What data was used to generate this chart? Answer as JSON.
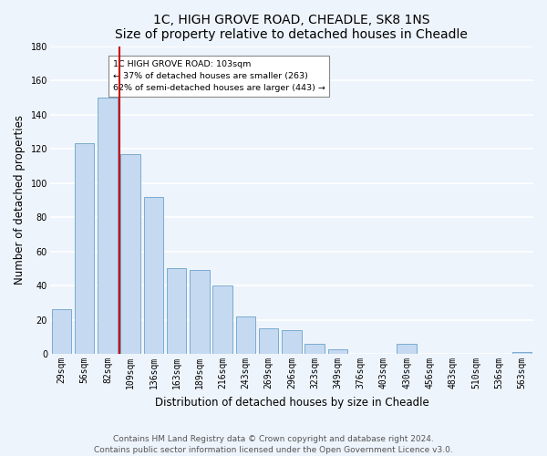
{
  "title": "1C, HIGH GROVE ROAD, CHEADLE, SK8 1NS",
  "subtitle": "Size of property relative to detached houses in Cheadle",
  "xlabel": "Distribution of detached houses by size in Cheadle",
  "ylabel": "Number of detached properties",
  "bar_labels": [
    "29sqm",
    "56sqm",
    "82sqm",
    "109sqm",
    "136sqm",
    "163sqm",
    "189sqm",
    "216sqm",
    "243sqm",
    "269sqm",
    "296sqm",
    "323sqm",
    "349sqm",
    "376sqm",
    "403sqm",
    "430sqm",
    "456sqm",
    "483sqm",
    "510sqm",
    "536sqm",
    "563sqm"
  ],
  "bar_values": [
    26,
    123,
    150,
    117,
    92,
    50,
    49,
    40,
    22,
    15,
    14,
    6,
    3,
    0,
    0,
    6,
    0,
    0,
    0,
    0,
    1
  ],
  "bar_color": "#c5d9f1",
  "bar_edge_color": "#7aaccf",
  "ylim": [
    0,
    180
  ],
  "yticks": [
    0,
    20,
    40,
    60,
    80,
    100,
    120,
    140,
    160,
    180
  ],
  "vline_position": 3.5,
  "property_line_label": "1C HIGH GROVE ROAD: 103sqm",
  "annotation_smaller": "← 37% of detached houses are smaller (263)",
  "annotation_larger": "62% of semi-detached houses are larger (443) →",
  "vline_color": "#cc0000",
  "footer1": "Contains HM Land Registry data © Crown copyright and database right 2024.",
  "footer2": "Contains public sector information licensed under the Open Government Licence v3.0.",
  "bg_color": "#eef4fc",
  "grid_color": "#ffffff",
  "title_fontsize": 10,
  "axis_label_fontsize": 8.5,
  "tick_fontsize": 7,
  "footer_fontsize": 6.5
}
